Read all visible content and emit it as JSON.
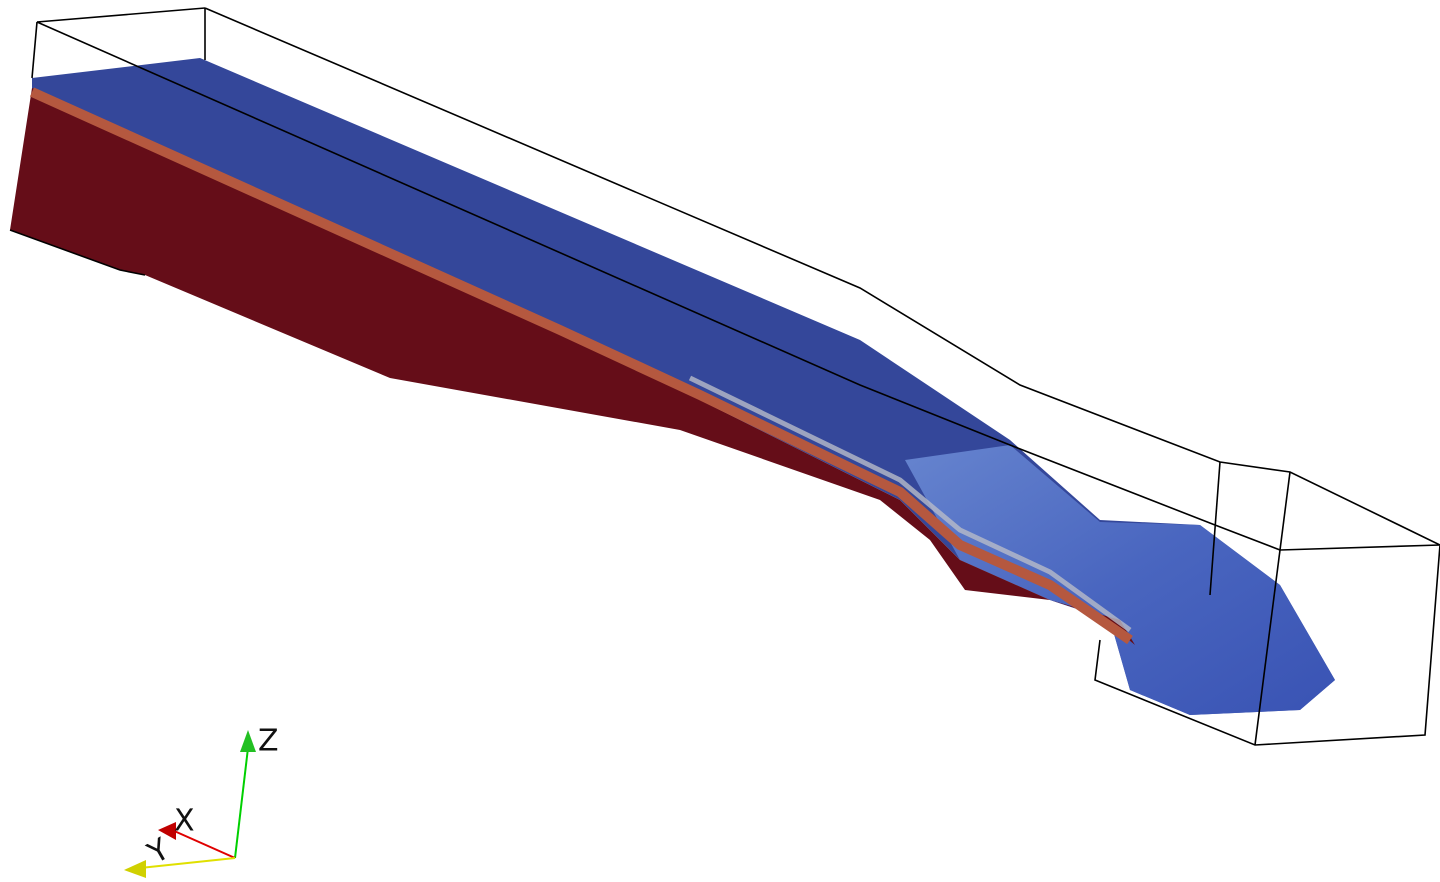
{
  "orientation_axes": {
    "z_label": "Z",
    "x_label": "X",
    "y_label": "Y"
  }
}
